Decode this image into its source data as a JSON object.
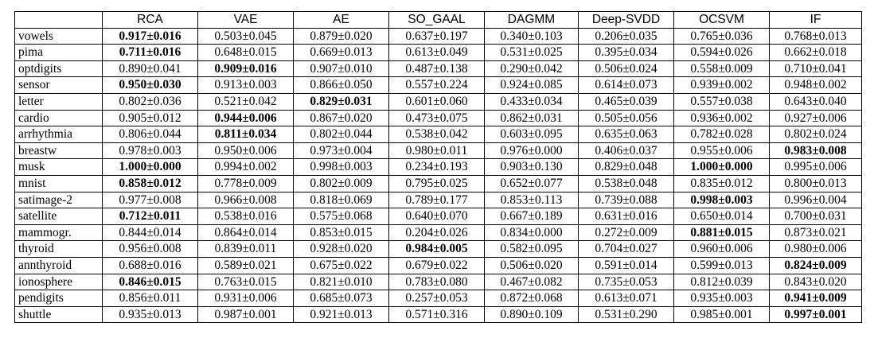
{
  "table": {
    "columns": [
      "",
      "RCA",
      "VAE",
      "AE",
      "SO_GAAL",
      "DAGMM",
      "Deep-SVDD",
      "OCSVM",
      "IF"
    ],
    "rows": [
      {
        "dataset": "vowels",
        "values": [
          "0.917±0.016",
          "0.503±0.045",
          "0.879±0.020",
          "0.637±0.197",
          "0.340±0.103",
          "0.206±0.035",
          "0.765±0.036",
          "0.768±0.013"
        ],
        "best": [
          0
        ]
      },
      {
        "dataset": "pima",
        "values": [
          "0.711±0.016",
          "0.648±0.015",
          "0.669±0.013",
          "0.613±0.049",
          "0.531±0.025",
          "0.395±0.034",
          "0.594±0.026",
          "0.662±0.018"
        ],
        "best": [
          0
        ]
      },
      {
        "dataset": "optdigits",
        "values": [
          "0.890±0.041",
          "0.909±0.016",
          "0.907±0.010",
          "0.487±0.138",
          "0.290±0.042",
          "0.506±0.024",
          "0.558±0.009",
          "0.710±0.041"
        ],
        "best": [
          1
        ]
      },
      {
        "dataset": "sensor",
        "values": [
          "0.950±0.030",
          "0.913±0.003",
          "0.866±0.050",
          "0.557±0.224",
          "0.924±0.085",
          "0.614±0.073",
          "0.939±0.002",
          "0.948±0.002"
        ],
        "best": [
          0
        ]
      },
      {
        "dataset": "letter",
        "values": [
          "0.802±0.036",
          "0.521±0.042",
          "0.829±0.031",
          "0.601±0.060",
          "0.433±0.034",
          "0.465±0.039",
          "0.557±0.038",
          "0.643±0.040"
        ],
        "best": [
          2
        ]
      },
      {
        "dataset": "cardio",
        "values": [
          "0.905±0.012",
          "0.944±0.006",
          "0.867±0.020",
          "0.473±0.075",
          "0.862±0.031",
          "0.505±0.056",
          "0.936±0.002",
          "0.927±0.006"
        ],
        "best": [
          1
        ]
      },
      {
        "dataset": "arrhythmia",
        "values": [
          "0.806±0.044",
          "0.811±0.034",
          "0.802±0.044",
          "0.538±0.042",
          "0.603±0.095",
          "0.635±0.063",
          "0.782±0.028",
          "0.802±0.024"
        ],
        "best": [
          1
        ]
      },
      {
        "dataset": "breastw",
        "values": [
          "0.978±0.003",
          "0.950±0.006",
          "0.973±0.004",
          "0.980±0.011",
          "0.976±0.000",
          "0.406±0.037",
          "0.955±0.006",
          "0.983±0.008"
        ],
        "best": [
          7
        ]
      },
      {
        "dataset": "musk",
        "values": [
          "1.000±0.000",
          "0.994±0.002",
          "0.998±0.003",
          "0.234±0.193",
          "0.903±0.130",
          "0.829±0.048",
          "1.000±0.000",
          "0.995±0.006"
        ],
        "best": [
          0,
          6
        ]
      },
      {
        "dataset": "mnist",
        "values": [
          "0.858±0.012",
          "0.778±0.009",
          "0.802±0.009",
          "0.795±0.025",
          "0.652±0.077",
          "0.538±0.048",
          "0.835±0.012",
          "0.800±0.013"
        ],
        "best": [
          0
        ]
      },
      {
        "dataset": "satimage-2",
        "values": [
          "0.977±0.008",
          "0.966±0.008",
          "0.818±0.069",
          "0.789±0.177",
          "0.853±0.113",
          "0.739±0.088",
          "0.998±0.003",
          "0.996±0.004"
        ],
        "best": [
          6
        ]
      },
      {
        "dataset": "satellite",
        "values": [
          "0.712±0.011",
          "0.538±0.016",
          "0.575±0.068",
          "0.640±0.070",
          "0.667±0.189",
          "0.631±0.016",
          "0.650±0.014",
          "0.700±0.031"
        ],
        "best": [
          0
        ]
      },
      {
        "dataset": "mammogr.",
        "values": [
          "0.844±0.014",
          "0.864±0.014",
          "0.853±0.015",
          "0.204±0.026",
          "0.834±0.000",
          "0.272±0.009",
          "0.881±0.015",
          "0.873±0.021"
        ],
        "best": [
          6
        ]
      },
      {
        "dataset": "thyroid",
        "values": [
          "0.956±0.008",
          "0.839±0.011",
          "0.928±0.020",
          "0.984±0.005",
          "0.582±0.095",
          "0.704±0.027",
          "0.960±0.006",
          "0.980±0.006"
        ],
        "best": [
          3
        ]
      },
      {
        "dataset": "annthyroid",
        "values": [
          "0.688±0.016",
          "0.589±0.021",
          "0.675±0.022",
          "0.679±0.022",
          "0.506±0.020",
          "0.591±0.014",
          "0.599±0.013",
          "0.824±0.009"
        ],
        "best": [
          7
        ]
      },
      {
        "dataset": "ionosphere",
        "values": [
          "0.846±0.015",
          "0.763±0.015",
          "0.821±0.010",
          "0.783±0.080",
          "0.467±0.082",
          "0.735±0.053",
          "0.812±0.039",
          "0.843±0.020"
        ],
        "best": [
          0
        ]
      },
      {
        "dataset": "pendigits",
        "values": [
          "0.856±0.011",
          "0.931±0.006",
          "0.685±0.073",
          "0.257±0.053",
          "0.872±0.068",
          "0.613±0.071",
          "0.935±0.003",
          "0.941±0.009"
        ],
        "best": [
          7
        ]
      },
      {
        "dataset": "shuttle",
        "values": [
          "0.935±0.013",
          "0.987±0.001",
          "0.921±0.013",
          "0.571±0.316",
          "0.890±0.109",
          "0.531±0.290",
          "0.985±0.001",
          "0.997±0.001"
        ],
        "best": [
          7
        ]
      }
    ]
  }
}
